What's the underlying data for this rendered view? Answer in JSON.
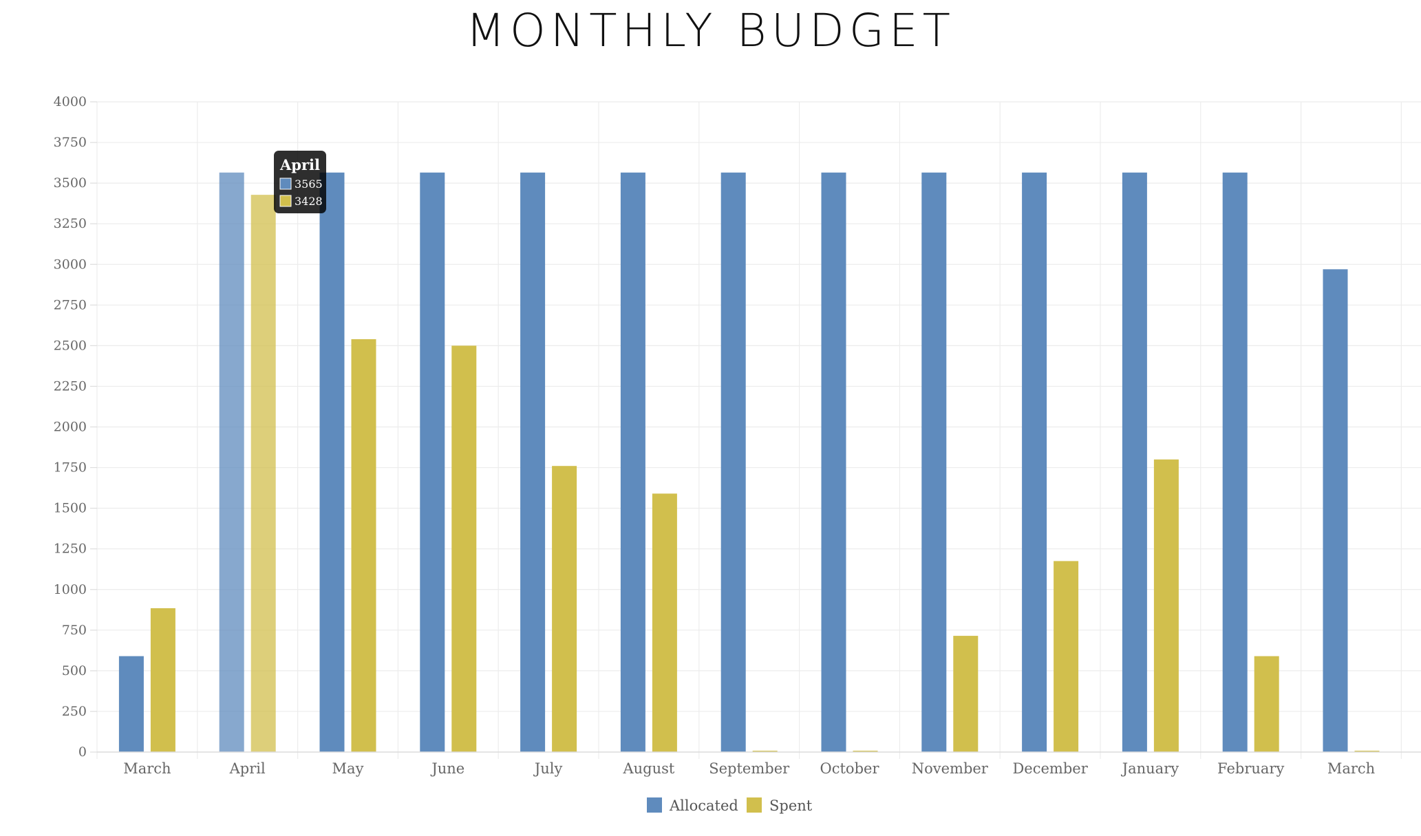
{
  "chart_data": {
    "type": "bar",
    "title": "MONTHLY BUDGET",
    "categories": [
      "March",
      "April",
      "May",
      "June",
      "July",
      "August",
      "September",
      "October",
      "November",
      "December",
      "January",
      "February",
      "March"
    ],
    "series": [
      {
        "name": "Allocated",
        "color": "#5f8bbd",
        "values": [
          590,
          3565,
          3565,
          3565,
          3565,
          3565,
          3565,
          3565,
          3565,
          3565,
          3565,
          3565,
          2970
        ]
      },
      {
        "name": "Spent",
        "color": "#d1bf4d",
        "values": [
          885,
          3428,
          2540,
          2500,
          1760,
          1590,
          8,
          8,
          715,
          1175,
          1800,
          590,
          8
        ]
      }
    ],
    "ylim": [
      0,
      4000
    ],
    "yticks": [
      0,
      250,
      500,
      750,
      1000,
      1250,
      1500,
      1750,
      2000,
      2250,
      2500,
      2750,
      3000,
      3250,
      3500,
      3750,
      4000
    ],
    "grid": true,
    "legend_position": "bottom",
    "tooltip": {
      "category_index": 1,
      "title": "April",
      "values": [
        "3565",
        "3428"
      ]
    }
  }
}
